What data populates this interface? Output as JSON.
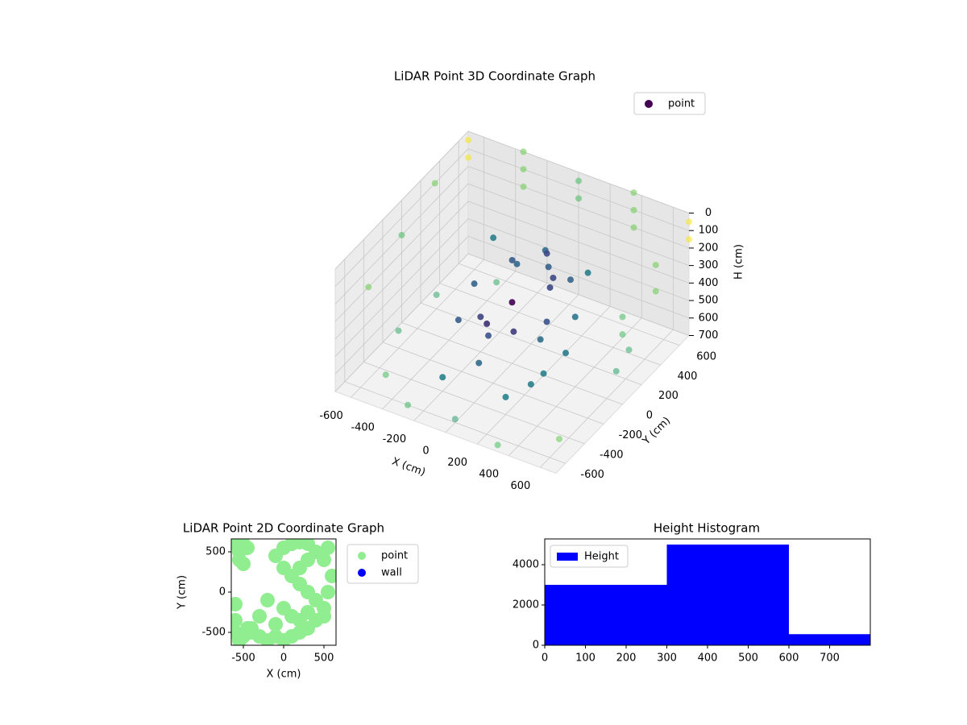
{
  "chart_data": [
    {
      "type": "scatter3d",
      "title": "LiDAR Point 3D Coordinate Graph",
      "xlabel": "X (cm)",
      "ylabel": "Y (cm)",
      "zlabel": "H (cm)",
      "xlim": [
        -700,
        700
      ],
      "ylim": [
        -700,
        700
      ],
      "zlim": [
        0,
        700
      ],
      "z_inverted": true,
      "xticks": [
        -600,
        -400,
        -200,
        0,
        200,
        400,
        600
      ],
      "yticks": [
        -600,
        -400,
        -200,
        0,
        200,
        400,
        600
      ],
      "zticks": [
        0,
        100,
        200,
        300,
        400,
        500,
        600,
        700
      ],
      "cmap": "viridis",
      "legend": "upper right",
      "grid": true,
      "series": [
        {
          "name": "point",
          "color": "#440154",
          "x": [
            -700,
            -700,
            -350,
            -350,
            -350,
            0,
            0,
            350,
            350,
            350,
            700,
            700,
            700,
            700,
            700,
            700,
            -700,
            -700,
            -700,
            -300,
            0,
            300,
            400,
            300,
            0,
            -250,
            -300,
            -150,
            150,
            250,
            100,
            -100,
            0,
            200,
            100,
            -200,
            0,
            300,
            400,
            -500,
            -300,
            0,
            300,
            600,
            -600,
            -600,
            -400,
            500,
            600,
            200,
            -200,
            -150,
            50,
            250,
            350
          ],
          "y": [
            700,
            700,
            700,
            700,
            700,
            700,
            700,
            700,
            700,
            700,
            700,
            700,
            350,
            350,
            0,
            0,
            350,
            0,
            -350,
            300,
            350,
            300,
            0,
            -200,
            -250,
            -150,
            100,
            250,
            150,
            -50,
            -150,
            -100,
            0,
            100,
            200,
            0,
            -350,
            -300,
            -100,
            -500,
            -600,
            -600,
            -650,
            -500,
            -200,
            200,
            500,
            400,
            100,
            -400,
            -400,
            300,
            300,
            200,
            -250
          ],
          "z": [
            50,
            150,
            0,
            100,
            200,
            50,
            150,
            0,
            100,
            200,
            50,
            150,
            100,
            250,
            200,
            300,
            100,
            200,
            300,
            250,
            250,
            250,
            300,
            350,
            400,
            450,
            400,
            300,
            300,
            350,
            400,
            450,
            350,
            200,
            150,
            500,
            500,
            550,
            450,
            650,
            700,
            680,
            700,
            650,
            600,
            620,
            650,
            680,
            600,
            600,
            620,
            350,
            300,
            250,
            500
          ]
        }
      ]
    },
    {
      "type": "scatter",
      "title": "LiDAR Point 2D Coordinate Graph",
      "xlabel": "X (cm)",
      "ylabel": "Y (cm)",
      "xlim": [
        -650,
        650
      ],
      "ylim": [
        -660,
        660
      ],
      "xticks": [
        -500,
        0,
        500
      ],
      "yticks": [
        -500,
        0,
        500
      ],
      "legend": "outside right",
      "series": [
        {
          "name": "point",
          "color": "#90ee90",
          "x": [
            -600,
            -550,
            -500,
            -450,
            -600,
            -500,
            -550,
            -600,
            -450,
            -400,
            -300,
            -200,
            -100,
            0,
            100,
            200,
            300,
            400,
            500,
            550,
            600,
            500,
            400,
            300,
            200,
            100,
            0,
            -100,
            0,
            100,
            200,
            300,
            400,
            500,
            300,
            200,
            100,
            0,
            -200,
            -300,
            -400,
            -550,
            -600,
            -500,
            200,
            300,
            -100,
            550
          ],
          "y": [
            600,
            500,
            600,
            550,
            -500,
            -550,
            -600,
            -350,
            -450,
            -500,
            -550,
            -600,
            -550,
            -600,
            -550,
            -500,
            -450,
            -350,
            -200,
            0,
            200,
            400,
            500,
            600,
            620,
            600,
            550,
            450,
            300,
            200,
            100,
            0,
            -100,
            -300,
            -250,
            -350,
            -300,
            -200,
            -100,
            -300,
            -450,
            400,
            -150,
            350,
            300,
            400,
            -400,
            550
          ]
        },
        {
          "name": "wall",
          "color": "#0000ff",
          "x": [],
          "y": []
        }
      ]
    },
    {
      "type": "histogram",
      "title": "Height Histogram",
      "bins": [
        0,
        300,
        600,
        800
      ],
      "counts": [
        3000,
        5000,
        550
      ],
      "xlim": [
        0,
        800
      ],
      "ylim": [
        0,
        5280
      ],
      "xticks": [
        0,
        100,
        200,
        300,
        400,
        500,
        600,
        700
      ],
      "yticks": [
        0,
        2000,
        4000
      ],
      "legend": "upper left",
      "series": [
        {
          "name": "Height",
          "color": "#0000ff"
        }
      ]
    }
  ]
}
